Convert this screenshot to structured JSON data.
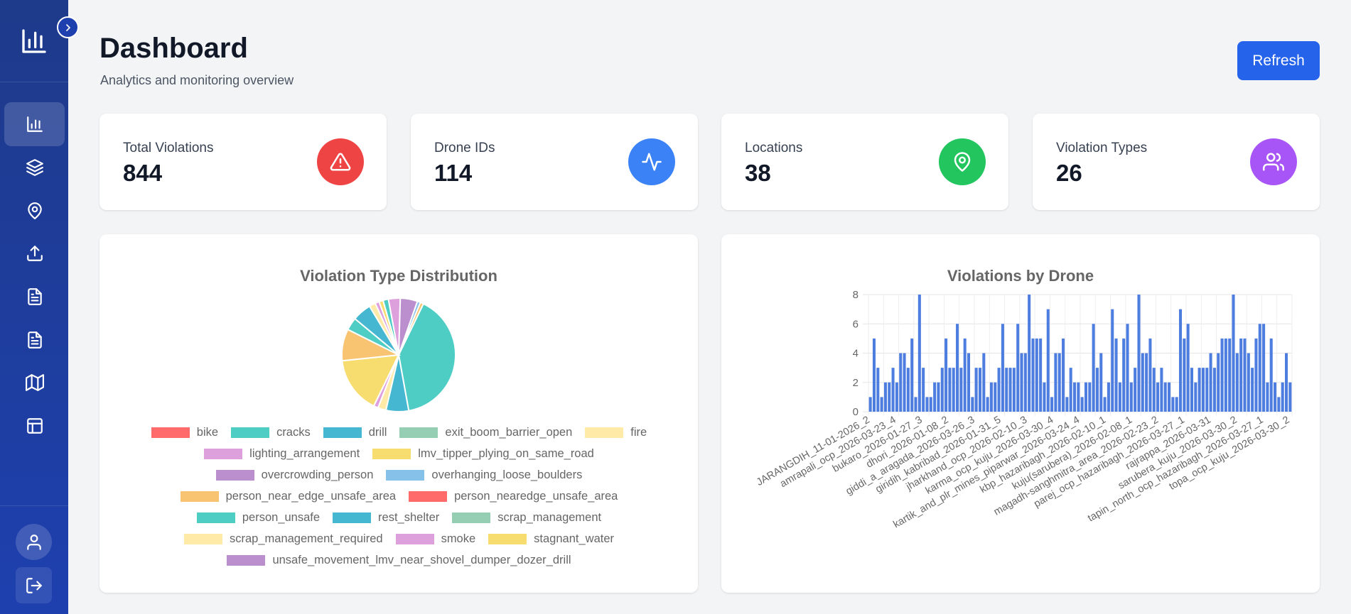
{
  "header": {
    "title": "Dashboard",
    "subtitle": "Analytics and monitoring overview",
    "refresh_label": "Refresh"
  },
  "sidebar": {
    "logo_icon": "bar-chart-icon",
    "items": [
      {
        "icon": "bar-chart-icon",
        "active": true
      },
      {
        "icon": "layers-icon"
      },
      {
        "icon": "map-pin-icon"
      },
      {
        "icon": "upload-icon"
      },
      {
        "icon": "file-text-icon"
      },
      {
        "icon": "file-text-icon"
      },
      {
        "icon": "map-icon"
      },
      {
        "icon": "table-icon"
      }
    ],
    "bottom": [
      {
        "icon": "user-icon"
      },
      {
        "icon": "logout-icon"
      }
    ]
  },
  "stats": [
    {
      "label": "Total Violations",
      "value": "844",
      "icon": "alert-triangle-icon",
      "color": "#ef4444"
    },
    {
      "label": "Drone IDs",
      "value": "114",
      "icon": "activity-icon",
      "color": "#3b82f6"
    },
    {
      "label": "Locations",
      "value": "38",
      "icon": "map-pin-icon",
      "color": "#22c55e"
    },
    {
      "label": "Violation Types",
      "value": "26",
      "icon": "users-icon",
      "color": "#a855f7"
    }
  ],
  "chart_data": [
    {
      "type": "pie",
      "title": "Violation Type Distribution",
      "legend_placement": "bottom",
      "slices": [
        {
          "name": "bike",
          "value": 0,
          "color": "#ff6b6b"
        },
        {
          "name": "cracks",
          "value": 310,
          "color": "#4ecdc4"
        },
        {
          "name": "drill",
          "value": 50,
          "color": "#45b7d1"
        },
        {
          "name": "exit_boom_barrier_open",
          "value": 0,
          "color": "#96ceb4"
        },
        {
          "name": "fire",
          "value": 18,
          "color": "#ffeaa7"
        },
        {
          "name": "lighting_arrangement",
          "value": 10,
          "color": "#dda0dd"
        },
        {
          "name": "lmv_tipper_plying_on_same_road",
          "value": 125,
          "color": "#f7dc6f"
        },
        {
          "name": "overcrowding_person",
          "value": 0,
          "color": "#bb8fce"
        },
        {
          "name": "overhanging_loose_boulders",
          "value": 0,
          "color": "#85c1e9"
        },
        {
          "name": "person_near_edge_unsafe_area",
          "value": 70,
          "color": "#f8c471"
        },
        {
          "name": "person_nearedge_unsafe_area",
          "value": 0,
          "color": "#ff6b6b"
        },
        {
          "name": "person_unsafe",
          "value": 28,
          "color": "#4ecdc4"
        },
        {
          "name": "rest_shelter",
          "value": 42,
          "color": "#45b7d1"
        },
        {
          "name": "scrap_management",
          "value": 0,
          "color": "#96ceb4"
        },
        {
          "name": "scrap_management_required",
          "value": 14,
          "color": "#ffeaa7"
        },
        {
          "name": "smoke",
          "value": 9,
          "color": "#dda0dd"
        },
        {
          "name": "stagnant_water",
          "value": 9,
          "color": "#f7dc6f"
        },
        {
          "name": "unsafe_movement_lmv_near_shovel_dumper_dozer_drill",
          "value": 0,
          "color": "#bb8fce"
        },
        {
          "name": "",
          "value": 12,
          "color": "#4ecdc4"
        },
        {
          "name": "",
          "value": 26,
          "color": "#dda0dd"
        },
        {
          "name": "",
          "value": 38,
          "color": "#bb8fce"
        },
        {
          "name": "",
          "value": 7,
          "color": "#85c1e9"
        },
        {
          "name": "",
          "value": 7,
          "color": "#f8c471"
        }
      ]
    },
    {
      "type": "bar",
      "title": "Violations by Drone",
      "ylim": [
        0,
        8
      ],
      "yticks": [
        0,
        2,
        4,
        6,
        8
      ],
      "color": "#4e7de0",
      "tick_labels": [
        "JARANGDIH_11-01-2026_2",
        "amrapali_ocp_2026-03-23_4",
        "bukaro_2026-01-27_3",
        "dhori_2026-01-08_2",
        "giddi_a_aragada_2026-03-26_3",
        "giridih_kabribad_2026-01-31_5",
        "jharkhand_ocp_2026-02-10_3",
        "karma_ocp_kuju_2026-03-30_4",
        "kartik_and_plr_mines_piparwar_2026-03-24_4",
        "kbp_hazaribagh_2026-02-10_1",
        "kuju(sarubera)_2026-02-08_1",
        "magadh-sanghmitra_area_2026-02-23_2",
        "parej_ocp_hazaribagh_2026-03-27_1",
        "rajrappa_2026-03-31",
        "sarubera_kuju_2026-03-30_2",
        "tapin_north_ocp_hazaribagh_2026-03-27_1",
        "topa_ocp_kuju_2026-03-30_2"
      ],
      "values": [
        1,
        5,
        3,
        1,
        2,
        2,
        3,
        2,
        4,
        4,
        3,
        5,
        1,
        8,
        3,
        1,
        1,
        2,
        2,
        3,
        5,
        3,
        3,
        6,
        3,
        5,
        4,
        1,
        3,
        3,
        4,
        1,
        2,
        2,
        3,
        6,
        3,
        3,
        3,
        6,
        4,
        4,
        8,
        5,
        5,
        5,
        2,
        7,
        1,
        4,
        4,
        5,
        1,
        3,
        2,
        2,
        1,
        2,
        2,
        6,
        3,
        4,
        1,
        2,
        7,
        5,
        2,
        5,
        6,
        2,
        3,
        8,
        4,
        4,
        5,
        3,
        2,
        3,
        2,
        2,
        1,
        1,
        7,
        5,
        6,
        3,
        2,
        3,
        3,
        3,
        4,
        3,
        4,
        5,
        5,
        5,
        8,
        4,
        5,
        5,
        4,
        3,
        5,
        6,
        6,
        2,
        5,
        2,
        1,
        2,
        4,
        2
      ]
    }
  ]
}
